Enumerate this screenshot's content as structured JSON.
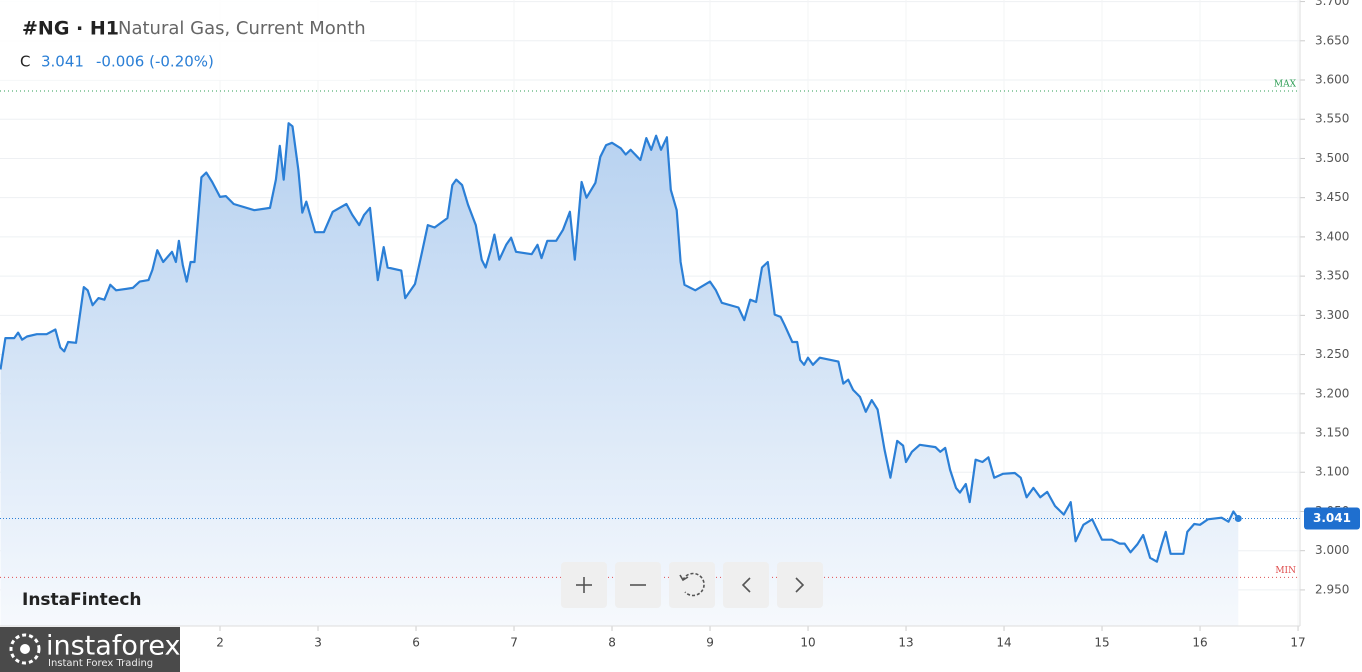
{
  "chart_data": {
    "type": "area",
    "title": "#NG · H1",
    "subtitle": "Natural Gas, Current Month",
    "header": {
      "close_label": "C",
      "close": "3.041",
      "change": "-0.006 (-0.20%)"
    },
    "watermark": "InstaFintech",
    "brand": {
      "name": "instaforex",
      "tagline": "Instant Forex Trading"
    },
    "color": "#2b7fd6",
    "grid": true,
    "xlim": [
      -1.245,
      12.02
    ],
    "xticks": [
      {
        "value": 1,
        "label": "2"
      },
      {
        "value": 2,
        "label": "3"
      },
      {
        "value": 3,
        "label": "6"
      },
      {
        "value": 4,
        "label": "7"
      },
      {
        "value": 5,
        "label": "8"
      },
      {
        "value": 6,
        "label": "9"
      },
      {
        "value": 7,
        "label": "10"
      },
      {
        "value": 8,
        "label": "13"
      },
      {
        "value": 9,
        "label": "14"
      },
      {
        "value": 10,
        "label": "15"
      },
      {
        "value": 11,
        "label": "16"
      },
      {
        "value": 12,
        "label": "17"
      }
    ],
    "ylim": [
      2.904,
      3.702
    ],
    "yticks": [
      {
        "value": 2.95,
        "label": "2.950"
      },
      {
        "value": 3.0,
        "label": "3.000"
      },
      {
        "value": 3.05,
        "label": "3.050"
      },
      {
        "value": 3.1,
        "label": "3.100"
      },
      {
        "value": 3.15,
        "label": "3.150"
      },
      {
        "value": 3.2,
        "label": "3.200"
      },
      {
        "value": 3.25,
        "label": "3.250"
      },
      {
        "value": 3.3,
        "label": "3.300"
      },
      {
        "value": 3.35,
        "label": "3.350"
      },
      {
        "value": 3.4,
        "label": "3.400"
      },
      {
        "value": 3.45,
        "label": "3.450"
      },
      {
        "value": 3.5,
        "label": "3.500"
      },
      {
        "value": 3.55,
        "label": "3.550"
      },
      {
        "value": 3.6,
        "label": "3.600"
      },
      {
        "value": 3.65,
        "label": "3.650"
      },
      {
        "value": 3.7,
        "label": "3.700"
      }
    ],
    "reference_lines": [
      {
        "label": "MAX",
        "value": 3.586,
        "color": "#2e9e55"
      },
      {
        "label": "MIN",
        "value": 2.966,
        "color": "#e05050"
      }
    ],
    "x": [
      -1.24,
      -1.19,
      -1.1,
      -1.06,
      -1.02,
      -0.97,
      -0.87,
      -0.77,
      -0.68,
      -0.63,
      -0.59,
      -0.55,
      -0.47,
      -0.39,
      -0.35,
      -0.3,
      -0.24,
      -0.18,
      -0.12,
      -0.06,
      0.11,
      0.18,
      0.27,
      0.31,
      0.36,
      0.42,
      0.51,
      0.55,
      0.58,
      0.62,
      0.66,
      0.7,
      0.74,
      0.81,
      0.86,
      0.92,
      1.0,
      1.06,
      1.14,
      1.35,
      1.51,
      1.57,
      1.61,
      1.65,
      1.7,
      1.74,
      1.8,
      1.84,
      1.88,
      1.97,
      2.06,
      2.15,
      2.29,
      2.35,
      2.42,
      2.47,
      2.53,
      2.61,
      2.67,
      2.71,
      2.85,
      2.89,
      2.99,
      3.06,
      3.12,
      3.19,
      3.32,
      3.37,
      3.41,
      3.47,
      3.53,
      3.61,
      3.67,
      3.71,
      3.76,
      3.8,
      3.85,
      3.92,
      3.97,
      4.02,
      4.18,
      4.24,
      4.28,
      4.34,
      4.43,
      4.5,
      4.57,
      4.62,
      4.69,
      4.74,
      4.83,
      4.88,
      4.94,
      5.0,
      5.09,
      5.14,
      5.19,
      5.29,
      5.35,
      5.4,
      5.45,
      5.5,
      5.56,
      5.6,
      5.66,
      5.7,
      5.74,
      5.85,
      6.0,
      6.06,
      6.12,
      6.29,
      6.35,
      6.41,
      6.47,
      6.53,
      6.59,
      6.66,
      6.72,
      6.76,
      6.84,
      6.89,
      6.92,
      6.96,
      7.0,
      7.05,
      7.12,
      7.31,
      7.36,
      7.41,
      7.46,
      7.53,
      7.59,
      7.65,
      7.71,
      7.78,
      7.84,
      7.91,
      7.97,
      8.0,
      8.06,
      8.14,
      8.3,
      8.35,
      8.4,
      8.45,
      8.51,
      8.55,
      8.61,
      8.65,
      8.71,
      8.78,
      8.84,
      8.9,
      8.99,
      9.11,
      9.17,
      9.23,
      9.3,
      9.37,
      9.44,
      9.52,
      9.61,
      9.68,
      9.73,
      9.81,
      9.9,
      10.0,
      10.1,
      10.18,
      10.23,
      10.29,
      10.36,
      10.42,
      10.49,
      10.56,
      10.61,
      10.65,
      10.7,
      10.83,
      10.87,
      10.94,
      11.0,
      11.08,
      11.22,
      11.29,
      11.34,
      11.39
    ],
    "values": [
      3.231,
      3.271,
      3.271,
      3.278,
      3.269,
      3.273,
      3.276,
      3.276,
      3.282,
      3.259,
      3.254,
      3.266,
      3.265,
      3.336,
      3.332,
      3.313,
      3.322,
      3.32,
      3.339,
      3.332,
      3.335,
      3.343,
      3.345,
      3.358,
      3.383,
      3.368,
      3.381,
      3.368,
      3.395,
      3.364,
      3.343,
      3.368,
      3.368,
      3.476,
      3.482,
      3.47,
      3.451,
      3.452,
      3.442,
      3.434,
      3.437,
      3.473,
      3.516,
      3.473,
      3.545,
      3.541,
      3.485,
      3.431,
      3.445,
      3.406,
      3.406,
      3.432,
      3.442,
      3.428,
      3.415,
      3.428,
      3.437,
      3.345,
      3.387,
      3.361,
      3.357,
      3.322,
      3.34,
      3.38,
      3.415,
      3.412,
      3.424,
      3.466,
      3.473,
      3.466,
      3.441,
      3.415,
      3.371,
      3.361,
      3.382,
      3.403,
      3.371,
      3.39,
      3.399,
      3.381,
      3.378,
      3.39,
      3.373,
      3.395,
      3.395,
      3.409,
      3.432,
      3.371,
      3.47,
      3.45,
      3.469,
      3.502,
      3.517,
      3.52,
      3.513,
      3.505,
      3.511,
      3.498,
      3.526,
      3.511,
      3.529,
      3.511,
      3.527,
      3.46,
      3.434,
      3.368,
      3.339,
      3.332,
      3.343,
      3.332,
      3.316,
      3.31,
      3.294,
      3.32,
      3.317,
      3.361,
      3.368,
      3.301,
      3.298,
      3.288,
      3.266,
      3.266,
      3.243,
      3.237,
      3.246,
      3.237,
      3.246,
      3.241,
      3.213,
      3.218,
      3.205,
      3.196,
      3.177,
      3.192,
      3.18,
      3.129,
      3.093,
      3.14,
      3.134,
      3.113,
      3.126,
      3.135,
      3.132,
      3.126,
      3.131,
      3.103,
      3.08,
      3.074,
      3.085,
      3.062,
      3.116,
      3.113,
      3.119,
      3.093,
      3.098,
      3.099,
      3.093,
      3.068,
      3.08,
      3.068,
      3.075,
      3.057,
      3.046,
      3.062,
      3.012,
      3.033,
      3.04,
      3.014,
      3.014,
      3.009,
      3.009,
      2.998,
      3.008,
      3.02,
      2.991,
      2.986,
      3.008,
      3.024,
      2.996,
      2.996,
      3.024,
      3.034,
      3.033,
      3.04,
      3.042,
      3.037,
      3.05,
      3.041
    ]
  }
}
